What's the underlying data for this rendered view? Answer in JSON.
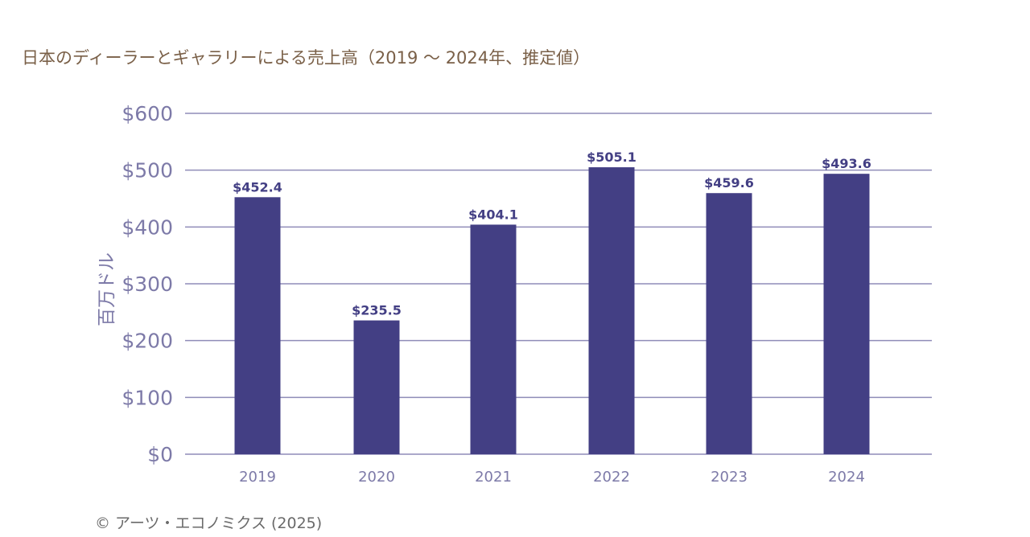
{
  "chart_data": {
    "type": "bar",
    "title": "日本のディーラーとギャラリーによる売上高（2019 〜 2024年、推定値）",
    "ylabel": "百万ドル",
    "xlabel": "",
    "categories": [
      "2019",
      "2020",
      "2021",
      "2022",
      "2023",
      "2024"
    ],
    "values": [
      452.4,
      235.5,
      404.1,
      505.1,
      459.6,
      493.6
    ],
    "data_labels": [
      "$452.4",
      "$235.5",
      "$404.1",
      "$505.1",
      "$459.6",
      "$493.6"
    ],
    "ylim": [
      0,
      600
    ],
    "yticks": [
      0,
      100,
      200,
      300,
      400,
      500,
      600
    ],
    "ytick_labels": [
      "$0",
      "$100",
      "$200",
      "$300",
      "$400",
      "$500",
      "$600"
    ],
    "grid": true,
    "colors": {
      "bar": "#433f84",
      "axis_text": "#7d7aa8",
      "grid": "#8f8cb8",
      "title": "#7a6048",
      "label": "#433f84"
    }
  },
  "footer": "©  アーツ・エコノミクス (2025)"
}
